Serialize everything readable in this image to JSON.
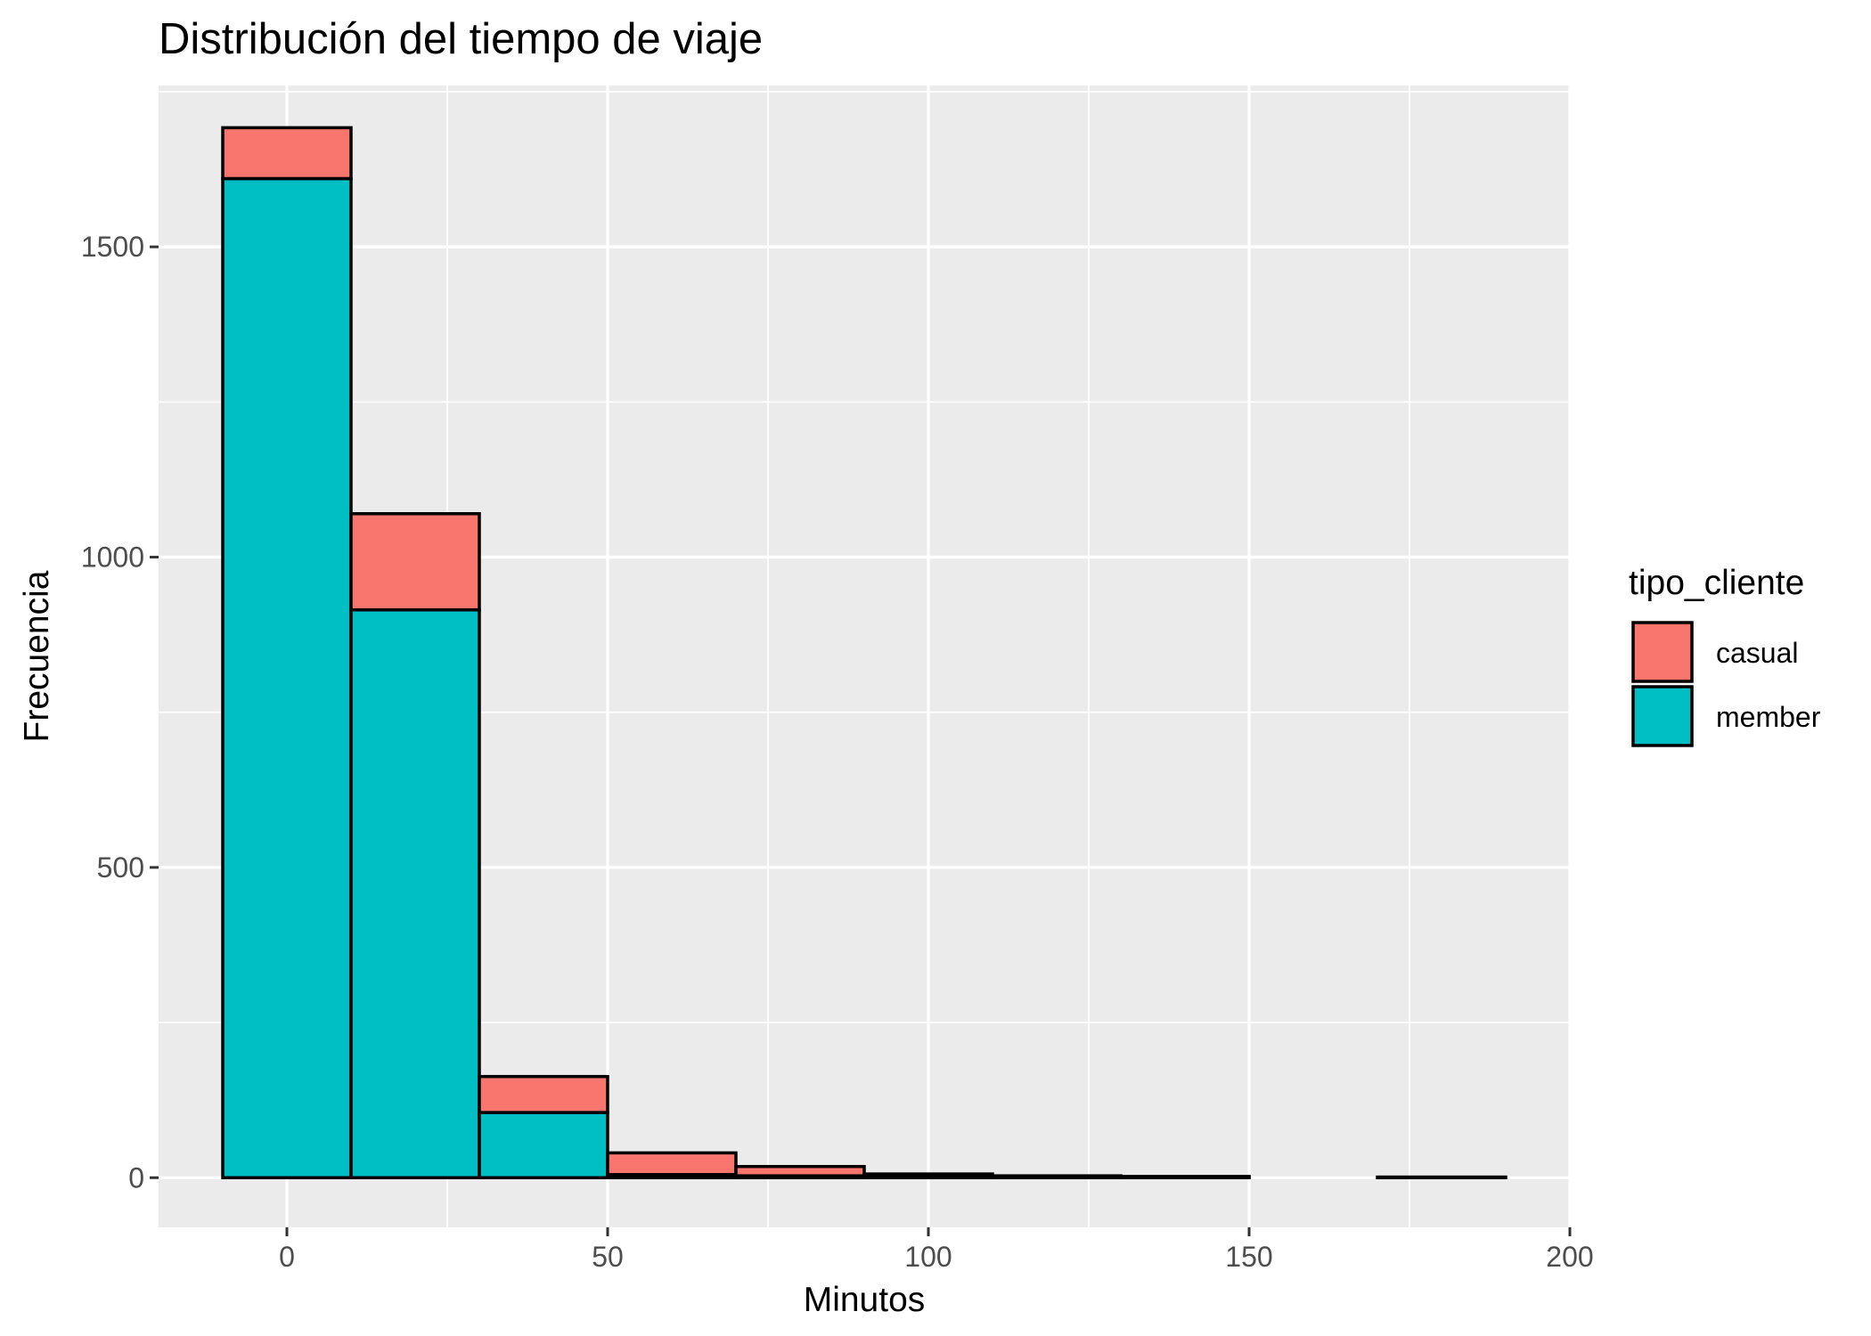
{
  "chart_data": {
    "type": "bar",
    "subtype": "stacked-histogram",
    "title": "Distribución del tiempo de viaje",
    "xlabel": "Minutos",
    "ylabel": "Frecuencia",
    "bin_width": 20,
    "bin_centers": [
      0,
      20,
      40,
      60,
      80,
      100,
      120,
      140,
      160,
      180
    ],
    "series": [
      {
        "name": "member",
        "color": "#00BFC4",
        "values": [
          1610,
          915,
          105,
          5,
          3,
          2,
          1,
          1,
          0,
          0
        ]
      },
      {
        "name": "casual",
        "color": "#F8766D",
        "values": [
          82,
          155,
          58,
          35,
          15,
          4,
          2,
          1,
          0,
          1
        ]
      }
    ],
    "xlim": [
      -20,
      200
    ],
    "ylim": [
      -80,
      1760
    ],
    "x_ticks": [
      0,
      50,
      100,
      150,
      200
    ],
    "x_tick_labels": [
      "0",
      "50",
      "100",
      "150",
      "200"
    ],
    "y_ticks": [
      0,
      500,
      1000,
      1500
    ],
    "y_tick_labels": [
      "0",
      "500",
      "1000",
      "1500"
    ],
    "grid": true,
    "legend": {
      "title": "tipo_cliente",
      "placement": "right",
      "entries": [
        "casual",
        "member"
      ]
    },
    "colors": {
      "panel": "#EBEBEB",
      "grid": "#FFFFFF",
      "bar_outline": "#000000"
    }
  }
}
